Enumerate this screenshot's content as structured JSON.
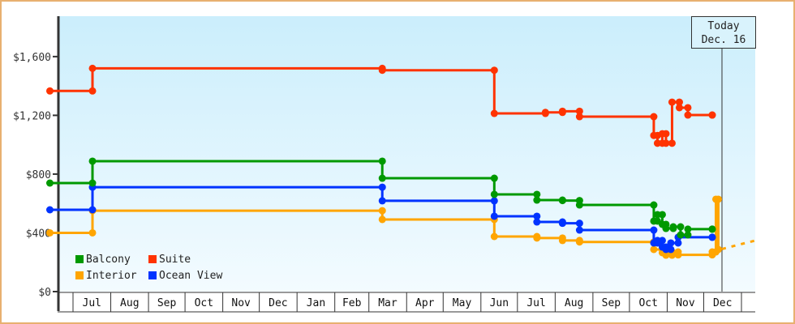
{
  "chart_data": {
    "type": "line",
    "step": true,
    "xlabel": "",
    "ylabel": "",
    "ylim": [
      0,
      1875
    ],
    "xlim": [
      "2012-06-12",
      "2014-01-12"
    ],
    "y_ticks": [
      {
        "value": 0,
        "label": "$0"
      },
      {
        "value": 400,
        "label": "$400"
      },
      {
        "value": 800,
        "label": "$800"
      },
      {
        "value": 1200,
        "label": "$1,200"
      },
      {
        "value": 1600,
        "label": "$1,600"
      }
    ],
    "x_months": [
      {
        "start": "2012-07-01",
        "label": "Jul"
      },
      {
        "start": "2012-08-01",
        "label": "Aug"
      },
      {
        "start": "2012-09-01",
        "label": "Sep"
      },
      {
        "start": "2012-10-01",
        "label": "Oct"
      },
      {
        "start": "2012-11-01",
        "label": "Nov"
      },
      {
        "start": "2012-12-01",
        "label": "Dec"
      },
      {
        "start": "2013-01-01",
        "label": "Jan"
      },
      {
        "start": "2013-02-01",
        "label": "Feb"
      },
      {
        "start": "2013-03-01",
        "label": "Mar"
      },
      {
        "start": "2013-04-01",
        "label": "Apr"
      },
      {
        "start": "2013-05-01",
        "label": "May"
      },
      {
        "start": "2013-06-01",
        "label": "Jun"
      },
      {
        "start": "2013-07-01",
        "label": "Jul"
      },
      {
        "start": "2013-08-01",
        "label": "Aug"
      },
      {
        "start": "2013-09-01",
        "label": "Sep"
      },
      {
        "start": "2013-10-01",
        "label": "Oct"
      },
      {
        "start": "2013-11-01",
        "label": "Nov"
      },
      {
        "start": "2013-12-01",
        "label": "Dec"
      },
      {
        "start": "2014-01-01",
        "label": ""
      }
    ],
    "today": {
      "date": "2013-12-16",
      "label_line1": "Today",
      "label_line2": "Dec. 16"
    },
    "legend_position": "bottom-left",
    "series": [
      {
        "name": "Suite",
        "color": "#ff3300",
        "points": [
          [
            "2012-06-12",
            1366
          ],
          [
            "2012-07-17",
            1520
          ],
          [
            "2013-03-12",
            1507
          ],
          [
            "2013-06-12",
            1213
          ],
          [
            "2013-07-24",
            1220
          ],
          [
            "2013-08-07",
            1228
          ],
          [
            "2013-08-21",
            1191
          ],
          [
            "2013-10-21",
            1063
          ],
          [
            "2013-10-24",
            1010
          ],
          [
            "2013-10-28",
            1075
          ],
          [
            "2013-10-31",
            1010
          ],
          [
            "2013-11-05",
            1290
          ],
          [
            "2013-11-11",
            1252
          ],
          [
            "2013-11-18",
            1202
          ],
          [
            "2013-12-08",
            1202
          ]
        ]
      },
      {
        "name": "Balcony",
        "color": "#009900",
        "points": [
          [
            "2012-06-12",
            739
          ],
          [
            "2012-07-17",
            888
          ],
          [
            "2013-03-12",
            772
          ],
          [
            "2013-06-12",
            662
          ],
          [
            "2013-07-17",
            623
          ],
          [
            "2013-08-07",
            620
          ],
          [
            "2013-08-21",
            590
          ],
          [
            "2013-10-21",
            480
          ],
          [
            "2013-10-24",
            524
          ],
          [
            "2013-10-28",
            458
          ],
          [
            "2013-10-31",
            430
          ],
          [
            "2013-11-06",
            441
          ],
          [
            "2013-11-12",
            386
          ],
          [
            "2013-11-18",
            425
          ],
          [
            "2013-12-08",
            425
          ]
        ]
      },
      {
        "name": "Interior",
        "color": "#ffa500",
        "points": [
          [
            "2012-06-12",
            400
          ],
          [
            "2012-07-17",
            551
          ],
          [
            "2013-03-12",
            491
          ],
          [
            "2013-06-12",
            375
          ],
          [
            "2013-07-17",
            365
          ],
          [
            "2013-08-07",
            348
          ],
          [
            "2013-08-21",
            338
          ],
          [
            "2013-10-21",
            287
          ],
          [
            "2013-10-28",
            265
          ],
          [
            "2013-10-31",
            248
          ],
          [
            "2013-11-05",
            270
          ],
          [
            "2013-11-10",
            250
          ],
          [
            "2013-12-08",
            270
          ],
          [
            "2013-12-11",
            629
          ],
          [
            "2013-12-13",
            287
          ]
        ]
      },
      {
        "name": "Ocean View",
        "color": "#0033ff",
        "points": [
          [
            "2012-06-12",
            557
          ],
          [
            "2012-07-17",
            711
          ],
          [
            "2013-03-12",
            618
          ],
          [
            "2013-06-12",
            513
          ],
          [
            "2013-07-17",
            474
          ],
          [
            "2013-08-07",
            465
          ],
          [
            "2013-08-21",
            419
          ],
          [
            "2013-10-21",
            331
          ],
          [
            "2013-10-24",
            348
          ],
          [
            "2013-10-28",
            303
          ],
          [
            "2013-10-31",
            287
          ],
          [
            "2013-11-04",
            331
          ],
          [
            "2013-11-10",
            370
          ],
          [
            "2013-12-08",
            370
          ]
        ]
      }
    ],
    "projection": {
      "series": "Interior",
      "style": "dashed",
      "points": [
        [
          "2013-12-16",
          290
        ],
        [
          "2014-01-12",
          347
        ]
      ]
    }
  },
  "legend": [
    {
      "name": "Balcony",
      "color": "#009900"
    },
    {
      "name": "Suite",
      "color": "#ff3300"
    },
    {
      "name": "Interior",
      "color": "#ffa500"
    },
    {
      "name": "Ocean View",
      "color": "#0033ff"
    }
  ]
}
